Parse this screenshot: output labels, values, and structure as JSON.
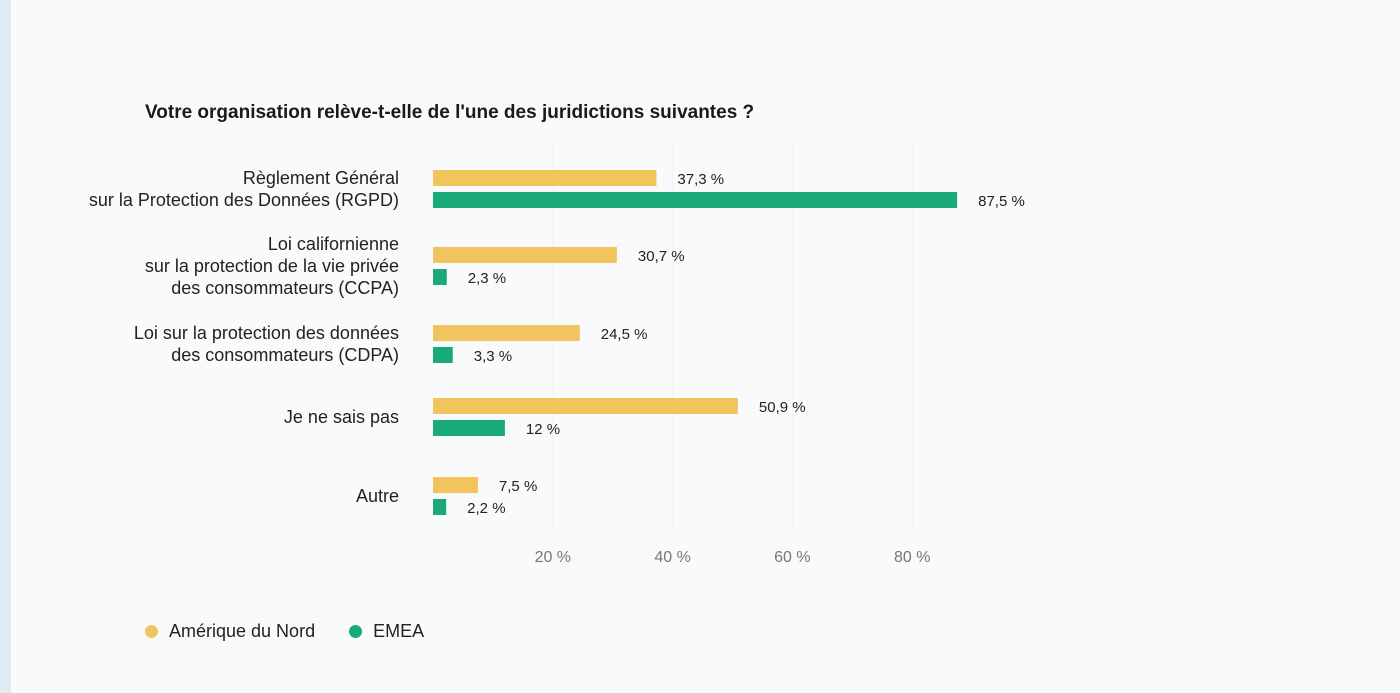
{
  "chart_data": {
    "type": "bar",
    "orientation": "horizontal",
    "title": "Votre organisation relève-t-elle de l'une des juridictions suivantes ?",
    "categories": [
      [
        "Règlement Général",
        "sur la Protection des Données (RGPD)"
      ],
      [
        "Loi californienne",
        "sur la protection de la vie privée",
        "des consommateurs (CCPA)"
      ],
      [
        "Loi sur la protection des données",
        "des consommateurs (CDPA)"
      ],
      [
        "Je ne sais pas"
      ],
      [
        "Autre"
      ]
    ],
    "series": [
      {
        "name": "Amérique du Nord",
        "color": "#f2c45e",
        "values": [
          37.3,
          30.7,
          24.5,
          50.9,
          7.5
        ],
        "labels": [
          "37,3 %",
          "30,7 %",
          "24,5 %",
          "50,9 %",
          "7,5 %"
        ]
      },
      {
        "name": "EMEA",
        "color": "#1aa97b",
        "values": [
          87.5,
          2.3,
          3.3,
          12,
          2.2
        ],
        "labels": [
          "87,5 %",
          "2,3 %",
          "3,3 %",
          "12 %",
          "2,2 %"
        ]
      }
    ],
    "xlim": [
      0,
      100
    ],
    "xticks": [
      20,
      40,
      60,
      80
    ],
    "xtick_labels": [
      "20 %",
      "40 %",
      "60 %",
      "80 %"
    ],
    "grid": false,
    "legend_position": "bottom-left"
  }
}
